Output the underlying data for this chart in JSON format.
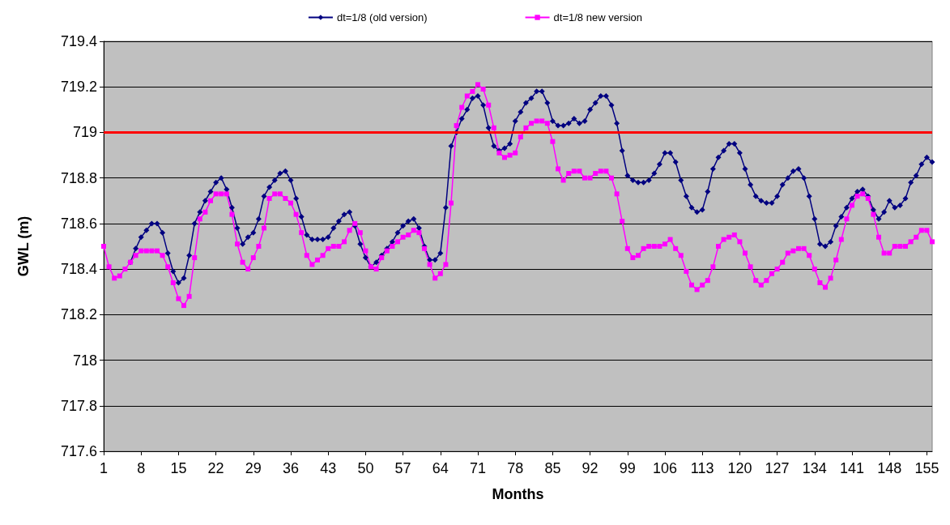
{
  "chart_data": {
    "type": "line",
    "xlabel": "Months",
    "ylabel": "GWL (m)",
    "categories": [
      "1",
      null,
      null,
      null,
      null,
      null,
      null,
      "8",
      null,
      null,
      null,
      null,
      null,
      null,
      "15",
      null,
      null,
      null,
      null,
      null,
      null,
      "22",
      null,
      null,
      null,
      null,
      null,
      null,
      "29",
      null,
      null,
      null,
      null,
      null,
      null,
      "36",
      null,
      null,
      null,
      null,
      null,
      null,
      "43",
      null,
      null,
      null,
      null,
      null,
      null,
      "50",
      null,
      null,
      null,
      null,
      null,
      null,
      "57",
      null,
      null,
      null,
      null,
      null,
      null,
      "64",
      null,
      null,
      null,
      null,
      null,
      null,
      "71",
      null,
      null,
      null,
      null,
      null,
      null,
      "78",
      null,
      null,
      null,
      null,
      null,
      null,
      "85",
      null,
      null,
      null,
      null,
      null,
      null,
      "92",
      null,
      null,
      null,
      null,
      null,
      null,
      "99",
      null,
      null,
      null,
      null,
      null,
      null,
      "106",
      null,
      null,
      null,
      null,
      null,
      null,
      "113",
      null,
      null,
      null,
      null,
      null,
      null,
      "120",
      null,
      null,
      null,
      null,
      null,
      null,
      "127",
      null,
      null,
      null,
      null,
      null,
      null,
      "134",
      null,
      null,
      null,
      null,
      null,
      null,
      "141",
      null,
      null,
      null,
      null,
      null,
      null,
      "148",
      null,
      null,
      null,
      null,
      null,
      null,
      "155",
      null
    ],
    "series": [
      {
        "name": "dt=1/8 (old version)",
        "color": "#000080",
        "marker": "diamond",
        "values": [
          null,
          null,
          null,
          null,
          null,
          718.43,
          718.49,
          718.54,
          718.57,
          718.6,
          718.6,
          718.56,
          718.47,
          718.39,
          718.34,
          718.36,
          718.46,
          718.6,
          718.65,
          718.7,
          718.74,
          718.78,
          718.8,
          718.75,
          718.67,
          718.58,
          718.51,
          718.54,
          718.56,
          718.62,
          718.72,
          718.76,
          718.79,
          718.82,
          718.83,
          718.79,
          718.71,
          718.63,
          718.55,
          718.53,
          718.53,
          718.53,
          718.54,
          718.58,
          718.61,
          718.64,
          718.65,
          718.59,
          718.51,
          718.45,
          718.41,
          718.43,
          718.46,
          718.49,
          718.52,
          718.56,
          718.59,
          718.61,
          718.62,
          718.58,
          718.5,
          718.44,
          718.44,
          718.47,
          718.67,
          718.94,
          719.0,
          719.06,
          719.1,
          719.15,
          719.16,
          719.12,
          719.02,
          718.94,
          718.92,
          718.93,
          718.95,
          719.05,
          719.09,
          719.13,
          719.15,
          719.18,
          719.18,
          719.13,
          719.05,
          719.03,
          719.03,
          719.04,
          719.06,
          719.04,
          719.05,
          719.1,
          719.13,
          719.16,
          719.16,
          719.12,
          719.04,
          718.92,
          718.81,
          718.79,
          718.78,
          718.78,
          718.79,
          718.82,
          718.86,
          718.91,
          718.91,
          718.87,
          718.79,
          718.72,
          718.67,
          718.65,
          718.66,
          718.74,
          718.84,
          718.89,
          718.92,
          718.95,
          718.95,
          718.91,
          718.84,
          718.77,
          718.72,
          718.7,
          718.69,
          718.69,
          718.72,
          718.77,
          718.8,
          718.83,
          718.84,
          718.8,
          718.72,
          718.62,
          718.51,
          718.5,
          718.52,
          718.59,
          718.63,
          718.67,
          718.71,
          718.74,
          718.75,
          718.72,
          718.66,
          718.62,
          718.65,
          718.7,
          718.67,
          718.68,
          718.71,
          718.78,
          718.81,
          718.86,
          718.89,
          718.87
        ]
      },
      {
        "name": "dt=1/8 new version",
        "color": "#ff00ff",
        "marker": "square",
        "values": [
          718.5,
          718.41,
          718.36,
          718.37,
          718.4,
          718.43,
          718.46,
          718.48,
          718.48,
          718.48,
          718.48,
          718.46,
          718.41,
          718.34,
          718.27,
          718.24,
          718.28,
          718.45,
          718.62,
          718.65,
          718.7,
          718.73,
          718.73,
          718.73,
          718.64,
          718.51,
          718.43,
          718.4,
          718.45,
          718.5,
          718.58,
          718.71,
          718.73,
          718.73,
          718.71,
          718.69,
          718.64,
          718.56,
          718.46,
          718.42,
          718.44,
          718.46,
          718.49,
          718.5,
          718.5,
          718.52,
          718.57,
          718.6,
          718.56,
          718.48,
          718.41,
          718.4,
          718.45,
          718.48,
          718.5,
          718.52,
          718.54,
          718.55,
          718.57,
          718.56,
          718.49,
          718.42,
          718.36,
          718.38,
          718.42,
          718.69,
          719.03,
          719.11,
          719.16,
          719.18,
          719.21,
          719.19,
          719.12,
          719.02,
          718.91,
          718.89,
          718.9,
          718.91,
          718.98,
          719.02,
          719.04,
          719.05,
          719.05,
          719.04,
          718.96,
          718.84,
          718.79,
          718.82,
          718.83,
          718.83,
          718.8,
          718.8,
          718.82,
          718.83,
          718.83,
          718.8,
          718.73,
          718.61,
          718.49,
          718.45,
          718.46,
          718.49,
          718.5,
          718.5,
          718.5,
          718.51,
          718.53,
          718.49,
          718.46,
          718.39,
          718.33,
          718.31,
          718.33,
          718.35,
          718.41,
          718.5,
          718.53,
          718.54,
          718.55,
          718.52,
          718.47,
          718.41,
          718.35,
          718.33,
          718.35,
          718.38,
          718.4,
          718.43,
          718.47,
          718.48,
          718.49,
          718.49,
          718.46,
          718.4,
          718.34,
          718.32,
          718.36,
          718.44,
          718.53,
          718.62,
          718.68,
          718.72,
          718.73,
          718.71,
          718.64,
          718.54,
          718.47,
          718.47,
          718.5,
          718.5,
          718.5,
          718.52,
          718.54,
          718.57,
          718.57,
          718.52
        ]
      }
    ],
    "ylim": [
      717.6,
      719.4
    ],
    "yticks": [
      717.6,
      717.8,
      718,
      718.2,
      718.4,
      718.6,
      718.8,
      719,
      719.2,
      719.4
    ],
    "ref_lines": [
      {
        "axis": "y",
        "value": 719,
        "color": "#ff0000",
        "line_style": "solid"
      }
    ],
    "grid": "y",
    "legend": "top",
    "line_style": "solid"
  }
}
